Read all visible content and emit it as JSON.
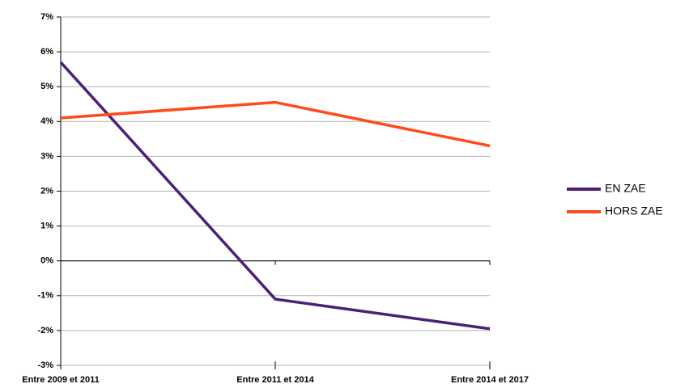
{
  "chart_data": {
    "type": "line",
    "categories": [
      "Entre 2009 et 2011",
      "Entre 2011 et 2014",
      "Entre 2014 et 2017"
    ],
    "series": [
      {
        "name": "EN ZAE",
        "color": "#4b2177",
        "values": [
          5.7,
          -1.1,
          -1.95
        ]
      },
      {
        "name": "HORS ZAE",
        "color": "#ff4a1c",
        "values": [
          4.1,
          4.55,
          3.3
        ]
      }
    ],
    "ylim": [
      -3,
      7
    ],
    "yticks": [
      {
        "value": -3,
        "label": "-3%"
      },
      {
        "value": -2,
        "label": "-2%"
      },
      {
        "value": -1,
        "label": "-1%"
      },
      {
        "value": 0,
        "label": "0%"
      },
      {
        "value": 1,
        "label": "1%"
      },
      {
        "value": 2,
        "label": "2%"
      },
      {
        "value": 3,
        "label": "3%"
      },
      {
        "value": 4,
        "label": "4%"
      },
      {
        "value": 5,
        "label": "5%"
      },
      {
        "value": 6,
        "label": "6%"
      },
      {
        "value": 7,
        "label": "7%"
      }
    ],
    "grid": true,
    "legend": "right"
  }
}
